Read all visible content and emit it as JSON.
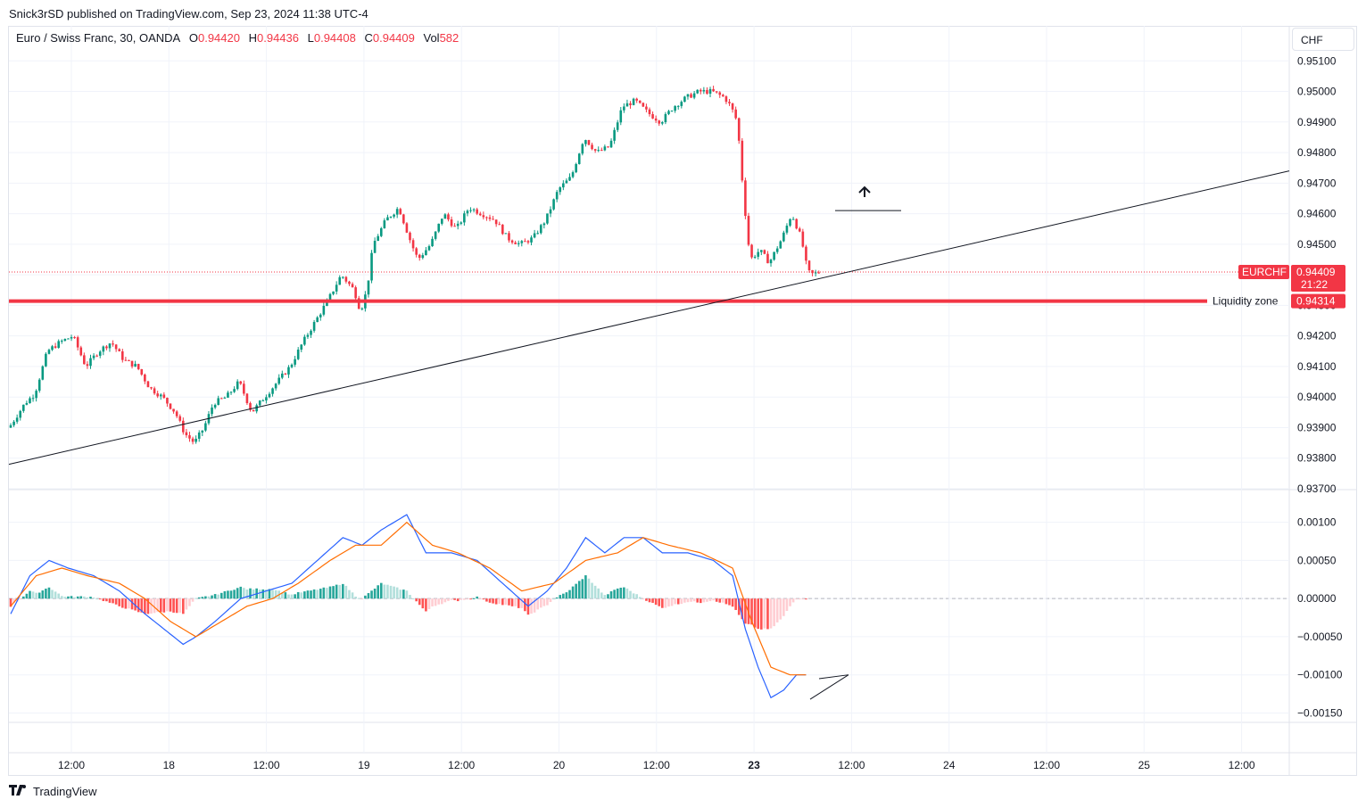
{
  "header": {
    "published_by": "Snick3rSD published on TradingView.com, Sep 23, 2024 11:38 UTC-4"
  },
  "legend": {
    "symbol": "Euro / Swiss Franc, 30, OANDA",
    "open_label": "O",
    "open": "0.94420",
    "high_label": "H",
    "high": "0.94436",
    "low_label": "L",
    "low": "0.94408",
    "close_label": "C",
    "close": "0.94409",
    "vol_label": "Vol",
    "vol": "582"
  },
  "currency_button": "CHF",
  "colors": {
    "up": "#089981",
    "down": "#f23645",
    "macd_line": "#2962ff",
    "signal_line": "#ff6d00",
    "hist_up_strong": "#26a69a",
    "hist_up_weak": "#b2dfdb",
    "hist_down_strong": "#ff5252",
    "hist_down_weak": "#ffcdd2",
    "liquidity_zone": "#f23645"
  },
  "chart_data": [
    {
      "type": "candlestick",
      "title": "Euro / Swiss Franc, 30, OANDA",
      "y_ticks": [
        "0.95100",
        "0.95000",
        "0.94900",
        "0.94800",
        "0.94700",
        "0.94600",
        "0.94500",
        "0.94400",
        "0.94300",
        "0.94200",
        "0.94100",
        "0.94000",
        "0.93900",
        "0.93800",
        "0.93700"
      ],
      "ylim": [
        0.937,
        0.9513
      ],
      "x_ticks": [
        "12:00",
        "18",
        "12:00",
        "19",
        "12:00",
        "20",
        "12:00",
        "23",
        "12:00",
        "24",
        "12:00",
        "25",
        "12:00"
      ],
      "bold_x_tick": "23",
      "price_path": [
        [
          0,
          0.939
        ],
        [
          5,
          0.9398
        ],
        [
          8,
          0.9401
        ],
        [
          12,
          0.9415
        ],
        [
          16,
          0.9418
        ],
        [
          20,
          0.942
        ],
        [
          24,
          0.941
        ],
        [
          28,
          0.9415
        ],
        [
          32,
          0.9418
        ],
        [
          36,
          0.9412
        ],
        [
          40,
          0.941
        ],
        [
          44,
          0.9403
        ],
        [
          48,
          0.94
        ],
        [
          52,
          0.9395
        ],
        [
          55,
          0.9388
        ],
        [
          58,
          0.9385
        ],
        [
          61,
          0.939
        ],
        [
          64,
          0.9398
        ],
        [
          68,
          0.94
        ],
        [
          72,
          0.9405
        ],
        [
          76,
          0.9395
        ],
        [
          80,
          0.94
        ],
        [
          84,
          0.9405
        ],
        [
          88,
          0.941
        ],
        [
          92,
          0.9418
        ],
        [
          96,
          0.9425
        ],
        [
          100,
          0.9432
        ],
        [
          104,
          0.944
        ],
        [
          108,
          0.9435
        ],
        [
          110,
          0.9428
        ],
        [
          112,
          0.9435
        ],
        [
          114,
          0.945
        ],
        [
          118,
          0.9458
        ],
        [
          122,
          0.9462
        ],
        [
          126,
          0.945
        ],
        [
          128,
          0.9445
        ],
        [
          132,
          0.945
        ],
        [
          136,
          0.946
        ],
        [
          140,
          0.9455
        ],
        [
          144,
          0.9462
        ],
        [
          148,
          0.946
        ],
        [
          152,
          0.9458
        ],
        [
          156,
          0.9452
        ],
        [
          160,
          0.945
        ],
        [
          164,
          0.9452
        ],
        [
          168,
          0.9458
        ],
        [
          172,
          0.9468
        ],
        [
          176,
          0.9472
        ],
        [
          180,
          0.9485
        ],
        [
          184,
          0.948
        ],
        [
          188,
          0.9482
        ],
        [
          192,
          0.9495
        ],
        [
          196,
          0.9497
        ],
        [
          200,
          0.9493
        ],
        [
          204,
          0.949
        ],
        [
          208,
          0.9495
        ],
        [
          212,
          0.9498
        ],
        [
          216,
          0.95
        ],
        [
          220,
          0.95
        ],
        [
          224,
          0.9498
        ],
        [
          226,
          0.9495
        ],
        [
          228,
          0.949
        ],
        [
          230,
          0.9465
        ],
        [
          232,
          0.9445
        ],
        [
          235,
          0.9448
        ],
        [
          238,
          0.9444
        ],
        [
          242,
          0.9452
        ],
        [
          245,
          0.946
        ],
        [
          248,
          0.9452
        ],
        [
          250,
          0.9441
        ],
        [
          252,
          0.944
        ],
        [
          253,
          0.94409
        ]
      ],
      "last_price": "0.94409",
      "last_symbol": "EURCHF",
      "countdown": "21:22",
      "liquidity_zone": {
        "label": "Liquidity zone",
        "value": "0.94314"
      },
      "trendline": {
        "from": [
          "17 06:00",
          0.9378
        ],
        "to": [
          "25 16:00",
          0.9474
        ]
      },
      "resistance_marker": {
        "value": 0.9461
      },
      "candle_count": 254
    },
    {
      "type": "line",
      "title": "",
      "series": [
        {
          "name": "",
          "color": "#2962ff"
        },
        {
          "name": "",
          "color": "#ff6d00"
        }
      ],
      "y_ticks": [
        "0.00100",
        "0.00050",
        "0.00000",
        "−0.00050",
        "−0.00100",
        "−0.00150"
      ],
      "ylim": [
        -0.0016,
        0.0013
      ],
      "macd": [
        [
          0,
          -0.0002
        ],
        [
          6,
          0.0003
        ],
        [
          12,
          0.0005
        ],
        [
          18,
          0.0004
        ],
        [
          26,
          0.0003
        ],
        [
          34,
          0.0001
        ],
        [
          42,
          -0.0002
        ],
        [
          48,
          -0.0004
        ],
        [
          54,
          -0.0006
        ],
        [
          58,
          -0.0005
        ],
        [
          64,
          -0.0003
        ],
        [
          72,
          0.0
        ],
        [
          80,
          0.0001
        ],
        [
          88,
          0.0002
        ],
        [
          96,
          0.0005
        ],
        [
          104,
          0.0008
        ],
        [
          110,
          0.0007
        ],
        [
          116,
          0.0009
        ],
        [
          124,
          0.0011
        ],
        [
          130,
          0.0006
        ],
        [
          138,
          0.0006
        ],
        [
          146,
          0.0005
        ],
        [
          154,
          0.0002
        ],
        [
          162,
          -0.0001
        ],
        [
          168,
          0.0001
        ],
        [
          174,
          0.0004
        ],
        [
          180,
          0.0008
        ],
        [
          186,
          0.0006
        ],
        [
          192,
          0.0008
        ],
        [
          198,
          0.0008
        ],
        [
          204,
          0.0006
        ],
        [
          212,
          0.0006
        ],
        [
          220,
          0.0005
        ],
        [
          226,
          0.0003
        ],
        [
          230,
          -0.0004
        ],
        [
          234,
          -0.0009
        ],
        [
          238,
          -0.0013
        ],
        [
          242,
          -0.0012
        ],
        [
          246,
          -0.001
        ],
        [
          250,
          -0.001
        ]
      ],
      "signal": [
        [
          0,
          -0.0001
        ],
        [
          8,
          0.0003
        ],
        [
          16,
          0.0004
        ],
        [
          24,
          0.0003
        ],
        [
          34,
          0.0002
        ],
        [
          42,
          0.0
        ],
        [
          50,
          -0.0003
        ],
        [
          58,
          -0.0005
        ],
        [
          66,
          -0.0003
        ],
        [
          74,
          -0.0001
        ],
        [
          82,
          0.0
        ],
        [
          90,
          0.0002
        ],
        [
          100,
          0.0005
        ],
        [
          108,
          0.0007
        ],
        [
          116,
          0.0007
        ],
        [
          124,
          0.001
        ],
        [
          132,
          0.0007
        ],
        [
          140,
          0.0006
        ],
        [
          150,
          0.0004
        ],
        [
          160,
          0.0001
        ],
        [
          170,
          0.0002
        ],
        [
          180,
          0.0005
        ],
        [
          190,
          0.0006
        ],
        [
          198,
          0.0008
        ],
        [
          206,
          0.0007
        ],
        [
          216,
          0.0006
        ],
        [
          226,
          0.0004
        ],
        [
          232,
          -0.0003
        ],
        [
          238,
          -0.0009
        ],
        [
          244,
          -0.001
        ],
        [
          250,
          -0.001
        ]
      ],
      "histogram_bars": 250
    }
  ],
  "footer": {
    "brand": "TradingView"
  }
}
